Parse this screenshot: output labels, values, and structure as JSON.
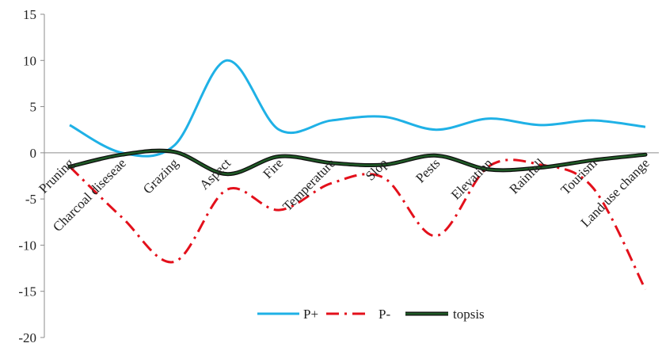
{
  "chart_data": {
    "type": "line",
    "title": "",
    "xlabel": "",
    "ylabel": "",
    "ylim": [
      -20,
      15
    ],
    "yticks": [
      15,
      10,
      5,
      0,
      -5,
      -10,
      -15,
      -20
    ],
    "grid": false,
    "legend_position": "bottom-center",
    "categories": [
      "Pruning",
      "Charcoal diseseae",
      "Grazing",
      "Aspect",
      "Fire",
      "Temperature",
      "Slop",
      "Pests",
      "Elevation",
      "Rainfall",
      "Tourism",
      "Land use change"
    ],
    "series": [
      {
        "name": "P+",
        "color": "#1fb1e6",
        "dash": "solid",
        "values": [
          3.0,
          0.0,
          0.8,
          10.0,
          2.5,
          3.5,
          3.9,
          2.5,
          3.7,
          3.0,
          3.5,
          2.8
        ]
      },
      {
        "name": "P-",
        "color": "#e3101b",
        "dash": "dashdot",
        "values": [
          -1.5,
          -7.0,
          -11.8,
          -4.0,
          -6.2,
          -3.3,
          -2.7,
          -9.0,
          -1.5,
          -1.3,
          -3.8,
          -14.8
        ]
      },
      {
        "name": "topsis",
        "color": "#17361a",
        "dash": "solid",
        "values": [
          -1.5,
          -0.2,
          0.1,
          -2.3,
          -0.4,
          -1.1,
          -1.3,
          -0.3,
          -1.8,
          -1.6,
          -0.8,
          -0.2
        ]
      }
    ]
  }
}
